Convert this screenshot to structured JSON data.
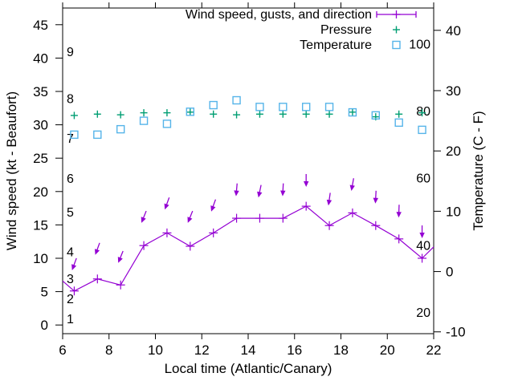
{
  "chart_data": {
    "type": "line",
    "xlabel": "Local time (Atlantic/Canary)",
    "ylabel_left": "Wind speed (kt - Beaufort)",
    "ylabel_right": "Temperature (C - F)",
    "xlim": [
      6,
      22
    ],
    "xticks": [
      6,
      8,
      10,
      12,
      14,
      16,
      18,
      20,
      22
    ],
    "ylim_left": [
      -1.3,
      47.5
    ],
    "yticks_left": [
      0,
      5,
      10,
      15,
      20,
      25,
      30,
      35,
      40,
      45
    ],
    "ylim_right": [
      -10.3,
      43.7
    ],
    "yticks_right": [
      -10,
      0,
      10,
      20,
      30,
      40
    ],
    "grid": false,
    "legend_position": "top-right-inside",
    "beaufort_scale_labels": [
      {
        "label": "1",
        "kt": 1
      },
      {
        "label": "2",
        "kt": 4
      },
      {
        "label": "3",
        "kt": 7
      },
      {
        "label": "4",
        "kt": 11
      },
      {
        "label": "5",
        "kt": 17
      },
      {
        "label": "6",
        "kt": 22
      },
      {
        "label": "7",
        "kt": 28
      },
      {
        "label": "8",
        "kt": 34
      },
      {
        "label": "9",
        "kt": 41
      }
    ],
    "fahrenheit_scale_labels": [
      {
        "label": "20",
        "celsius": -6.7
      },
      {
        "label": "40",
        "celsius": 4.4
      },
      {
        "label": "60",
        "celsius": 15.6
      },
      {
        "label": "80",
        "celsius": 26.7
      },
      {
        "label": "100",
        "celsius": 37.8
      }
    ],
    "x": [
      6.5,
      7.5,
      8.5,
      9.5,
      10.5,
      11.5,
      12.5,
      13.5,
      14.5,
      15.5,
      16.5,
      17.5,
      18.5,
      19.5,
      20.5,
      21.5
    ],
    "series": [
      {
        "name": "Wind speed, gusts, and direction",
        "color": "#9400d3",
        "axis": "left",
        "marker": "plus",
        "style": "line-with-gust-arrows",
        "values": [
          5.1,
          6.9,
          6.0,
          11.9,
          13.8,
          11.8,
          13.8,
          16.0,
          16.0,
          16.0,
          17.8,
          14.9,
          16.8,
          14.9,
          12.9,
          10.0
        ],
        "gusts_kt": [
          8.2,
          10.5,
          9.3,
          15.3,
          17.3,
          15.3,
          17.0,
          19.3,
          19.1,
          19.3,
          20.7,
          17.9,
          20.1,
          18.2,
          16.1,
          13.0
        ],
        "direction_deg_from": [
          20,
          20,
          22,
          22,
          20,
          22,
          20,
          5,
          12,
          3,
          0,
          8,
          10,
          3,
          2,
          0
        ],
        "edge_points": [
          [
            6.0,
            6.6
          ],
          [
            22.0,
            11.7
          ]
        ]
      },
      {
        "name": "Pressure",
        "color": "#009e73",
        "axis": "left",
        "marker": "plus",
        "style": "points",
        "values": [
          31.4,
          31.6,
          31.5,
          31.8,
          31.8,
          31.9,
          31.6,
          31.5,
          31.6,
          31.6,
          31.6,
          31.6,
          31.9,
          31.2,
          31.6,
          31.8
        ]
      },
      {
        "name": "Temperature",
        "color": "#56b4e9",
        "axis": "right",
        "marker": "square",
        "style": "points",
        "values": [
          22.7,
          22.7,
          23.6,
          25.0,
          24.5,
          26.5,
          27.6,
          28.4,
          27.3,
          27.3,
          27.3,
          27.3,
          26.4,
          25.9,
          24.7,
          23.5
        ]
      }
    ]
  },
  "colors": {
    "background": "#ffffff",
    "axis": "#000000",
    "wind": "#9400d3",
    "pressure": "#009e73",
    "temperature": "#56b4e9"
  }
}
